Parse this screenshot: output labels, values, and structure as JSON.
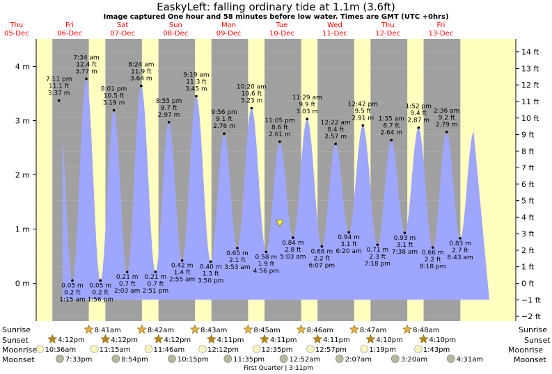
{
  "title": "EaskyLeft: falling  ordinary tide at 1.1m (3.6ft)",
  "subtitle": "Image captured One hour and 58 minutes before low water. Times are GMT (UTC +0hrs)",
  "colors": {
    "day": "#ffffc0",
    "night": "#a0a0a0",
    "water": "#9fa6ff",
    "daylabel": "#ff0000"
  },
  "days": [
    {
      "name": "Thu",
      "date": "05-Dec"
    },
    {
      "name": "Fri",
      "date": "06-Dec"
    },
    {
      "name": "Sat",
      "date": "07-Dec"
    },
    {
      "name": "Sun",
      "date": "08-Dec"
    },
    {
      "name": "Mon",
      "date": "09-Dec"
    },
    {
      "name": "Tue",
      "date": "10-Dec"
    },
    {
      "name": "Wed",
      "date": "11-Dec"
    },
    {
      "name": "Thu",
      "date": "12-Dec"
    },
    {
      "name": "Fri",
      "date": "13-Dec"
    }
  ],
  "chart_data": {
    "type": "area",
    "title": "EaskyLeft: falling  ordinary tide at 1.1m (3.6ft)",
    "y_left_unit": "m",
    "y_right_unit": "ft",
    "ylim_m": [
      -0.35,
      4.5
    ],
    "y_left_ticks": [
      "0 m",
      "1 m",
      "2 m",
      "3 m",
      "4 m"
    ],
    "y_right_ticks": [
      "−2 ft",
      "−1 ft",
      "0 ft",
      "1 ft",
      "2 ft",
      "3 ft",
      "4 ft",
      "5 ft",
      "6 ft",
      "7 ft",
      "8 ft",
      "9 ft",
      "10 ft",
      "11 ft",
      "12 ft",
      "13 ft",
      "14 ft"
    ],
    "current": {
      "height_m": 1.1,
      "label": "falling"
    },
    "series": [
      {
        "time": "7:11 pm",
        "day": "Thu",
        "ft": "11.1 ft",
        "m": 3.37,
        "type": "high"
      },
      {
        "time": "1:15 am",
        "day": "Fri",
        "ft": "0.2 ft",
        "m": 0.05,
        "type": "low"
      },
      {
        "time": "7:34 am",
        "day": "Fri",
        "ft": "12.4 ft",
        "m": 3.77,
        "type": "high"
      },
      {
        "time": "1:56 pm",
        "day": "Fri",
        "ft": "0.2 ft",
        "m": 0.05,
        "type": "low"
      },
      {
        "time": "8:01 pm",
        "day": "Fri",
        "ft": "10.5 ft",
        "m": 3.19,
        "type": "high"
      },
      {
        "time": "2:03 am",
        "day": "Sat",
        "ft": "0.7 ft",
        "m": 0.21,
        "type": "low"
      },
      {
        "time": "8:24 am",
        "day": "Sat",
        "ft": "11.9 ft",
        "m": 3.64,
        "type": "high"
      },
      {
        "time": "2:51 pm",
        "day": "Sat",
        "ft": "0.7 ft",
        "m": 0.21,
        "type": "low"
      },
      {
        "time": "8:55 pm",
        "day": "Sat",
        "ft": "9.7 ft",
        "m": 2.97,
        "type": "high"
      },
      {
        "time": "2:55 am",
        "day": "Sun",
        "ft": "1.4 ft",
        "m": 0.42,
        "type": "low"
      },
      {
        "time": "9:19 am",
        "day": "Sun",
        "ft": "11.3 ft",
        "m": 3.45,
        "type": "high"
      },
      {
        "time": "3:50 pm",
        "day": "Sun",
        "ft": "1.3 ft",
        "m": 0.4,
        "type": "low"
      },
      {
        "time": "9:56 pm",
        "day": "Sun",
        "ft": "9.1 ft",
        "m": 2.76,
        "type": "high"
      },
      {
        "time": "3:53 am",
        "day": "Mon",
        "ft": "2.1 ft",
        "m": 0.65,
        "type": "low"
      },
      {
        "time": "10:20 am",
        "day": "Mon",
        "ft": "10.6 ft",
        "m": 3.23,
        "type": "high"
      },
      {
        "time": "4:56 pm",
        "day": "Mon",
        "ft": "1.9 ft",
        "m": 0.58,
        "type": "low"
      },
      {
        "time": "11:05 pm",
        "day": "Mon",
        "ft": "8.6 ft",
        "m": 2.61,
        "type": "high"
      },
      {
        "time": "5:03 am",
        "day": "Tue",
        "ft": "2.8 ft",
        "m": 0.84,
        "type": "low"
      },
      {
        "time": "11:29 am",
        "day": "Tue",
        "ft": "9.9 ft",
        "m": 3.03,
        "type": "high"
      },
      {
        "time": "6:07 pm",
        "day": "Tue",
        "ft": "2.2 ft",
        "m": 0.68,
        "type": "low"
      },
      {
        "time": "12:22 am",
        "day": "Wed",
        "ft": "8.4 ft",
        "m": 2.57,
        "type": "high"
      },
      {
        "time": "6:20 am",
        "day": "Wed",
        "ft": "3.1 ft",
        "m": 0.94,
        "type": "low"
      },
      {
        "time": "12:42 pm",
        "day": "Wed",
        "ft": "9.5 ft",
        "m": 2.91,
        "type": "high"
      },
      {
        "time": "7:18 pm",
        "day": "Wed",
        "ft": "2.3 ft",
        "m": 0.71,
        "type": "low"
      },
      {
        "time": "1:35 am",
        "day": "Thu",
        "ft": "8.7 ft",
        "m": 2.64,
        "type": "high"
      },
      {
        "time": "7:38 am",
        "day": "Thu",
        "ft": "3.1 ft",
        "m": 0.93,
        "type": "low"
      },
      {
        "time": "1:52 pm",
        "day": "Thu",
        "ft": "9.4 ft",
        "m": 2.87,
        "type": "high"
      },
      {
        "time": "8:18 pm",
        "day": "Thu",
        "ft": "2.2 ft",
        "m": 0.66,
        "type": "low"
      },
      {
        "time": "2:36 am",
        "day": "Fri",
        "ft": "9.2 ft",
        "m": 2.79,
        "type": "high"
      },
      {
        "time": "8:43 am",
        "day": "Fri",
        "ft": "2.7 ft",
        "m": 0.83,
        "type": "low"
      }
    ]
  },
  "rows": {
    "sunrise": "Sunrise",
    "sunset": "Sunset",
    "moonrise": "Moonrise",
    "moonset": "Moonset"
  },
  "sunrise": [
    "8:41am",
    "8:42am",
    "8:43am",
    "8:45am",
    "8:46am",
    "8:47am",
    "8:48am"
  ],
  "sunset": [
    "4:12pm",
    "4:12pm",
    "4:12pm",
    "4:11pm",
    "4:11pm",
    "4:11pm",
    "4:10pm",
    "4:10pm"
  ],
  "moonrise": [
    "10:36am",
    "11:15am",
    "11:46am",
    "12:12pm",
    "12:35pm",
    "12:57pm",
    "1:19pm",
    "1:43pm"
  ],
  "moonset": [
    "7:33pm",
    "8:54pm",
    "10:15pm",
    "11:35pm",
    "12:52am",
    "2:07am",
    "3:20am",
    "4:31am"
  ],
  "moon_phase": "First Quarter | 3:11pm"
}
